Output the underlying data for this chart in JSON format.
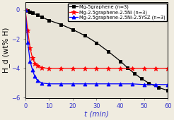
{
  "title": "",
  "xlabel": "t (min)",
  "ylabel": "H_d (wt% H)",
  "xlim": [
    0,
    60
  ],
  "ylim": [
    -6,
    0.5
  ],
  "yticks": [
    0,
    -2,
    -4,
    -6
  ],
  "xticks": [
    0,
    10,
    20,
    30,
    40,
    50,
    60
  ],
  "series": [
    {
      "label": "Mg-5graphene (n=3)",
      "color": "black",
      "marker": "s",
      "x": [
        0,
        1,
        2,
        3,
        5,
        7,
        10,
        15,
        20,
        25,
        30,
        35,
        40,
        43,
        46,
        49,
        52,
        56,
        60
      ],
      "y": [
        0,
        -0.07,
        -0.15,
        -0.22,
        -0.35,
        -0.5,
        -0.72,
        -1.0,
        -1.35,
        -1.75,
        -2.25,
        -2.85,
        -3.5,
        -3.95,
        -4.35,
        -4.7,
        -5.0,
        -5.3,
        -5.5
      ]
    },
    {
      "label": "Mg-2.5graphene-2.5Ni (n=3)",
      "color": "red",
      "marker": "*",
      "x": [
        0,
        1,
        2,
        3,
        4,
        5,
        7,
        10,
        15,
        20,
        25,
        30,
        35,
        40,
        45,
        50,
        55,
        60
      ],
      "y": [
        0,
        -1.4,
        -2.6,
        -3.3,
        -3.65,
        -3.8,
        -3.95,
        -4.0,
        -4.0,
        -4.0,
        -4.0,
        -4.0,
        -4.0,
        -4.0,
        -4.0,
        -4.0,
        -4.0,
        -4.0
      ]
    },
    {
      "label": "Mg-2.5graphene-2.5Ni-2.5YSZ (n=3)",
      "color": "blue",
      "marker": "^",
      "x": [
        0,
        1,
        2,
        3,
        4,
        5,
        7,
        10,
        15,
        20,
        25,
        30,
        35,
        40,
        45,
        50,
        55,
        60
      ],
      "y": [
        0,
        -2.2,
        -3.5,
        -4.1,
        -4.55,
        -4.8,
        -5.0,
        -5.05,
        -5.05,
        -5.05,
        -5.05,
        -5.05,
        -5.05,
        -5.05,
        -5.05,
        -5.1,
        -5.1,
        -5.1
      ]
    }
  ],
  "legend_fontsize": 4.8,
  "axis_label_fontsize": 7.5,
  "tick_fontsize": 6.0,
  "background_color": "#f0ece0",
  "plot_bg_color": "#e8e4d8"
}
